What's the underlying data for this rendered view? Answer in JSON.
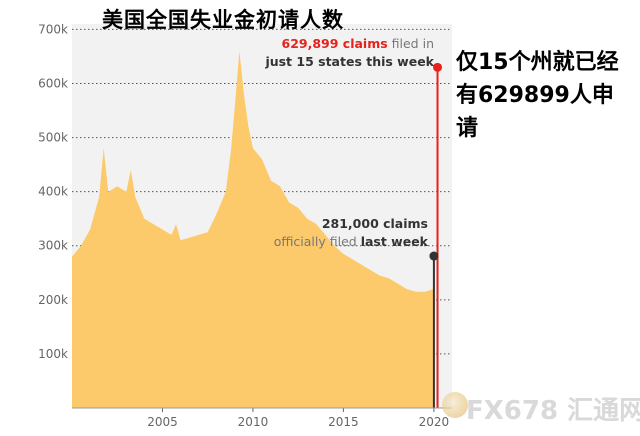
{
  "headline": "美国全国失业金初请人数",
  "side_note": "仅15个州就已经有629899人申请",
  "watermark": "FX678 汇通网",
  "colors": {
    "area": "#fcc96b",
    "bg": "#f2f2f2",
    "red": "#e8211b",
    "dark": "#333333",
    "grid": "#555555",
    "tick": "#666666"
  },
  "chart_data": {
    "type": "area",
    "xlim": [
      2000,
      2021
    ],
    "ylim": [
      0,
      710000
    ],
    "x_ticks": [
      2005,
      2010,
      2015,
      2020
    ],
    "y_ticks": [
      {
        "value": 100000,
        "label": "100k"
      },
      {
        "value": 200000,
        "label": "200k"
      },
      {
        "value": 300000,
        "label": "300k"
      },
      {
        "value": 400000,
        "label": "400k"
      },
      {
        "value": 500000,
        "label": "500k"
      },
      {
        "value": 600000,
        "label": "600k"
      },
      {
        "value": 700000,
        "label": "700k"
      }
    ],
    "series": [
      {
        "x": [
          2000,
          2000.5,
          2001,
          2001.5,
          2001.75,
          2002,
          2002.5,
          2003,
          2003.25,
          2003.5,
          2004,
          2004.5,
          2005,
          2005.5,
          2005.75,
          2006,
          2006.5,
          2007,
          2007.5,
          2008,
          2008.5,
          2008.8,
          2009,
          2009.25,
          2009.5,
          2009.75,
          2010,
          2010.5,
          2011,
          2011.5,
          2012,
          2012.5,
          2013,
          2013.5,
          2014,
          2014.5,
          2015,
          2015.5,
          2016,
          2016.5,
          2017,
          2017.5,
          2018,
          2018.5,
          2019,
          2019.5,
          2020.0
        ],
        "y": [
          280000,
          300000,
          330000,
          390000,
          480000,
          400000,
          410000,
          400000,
          440000,
          390000,
          350000,
          340000,
          330000,
          320000,
          340000,
          310000,
          315000,
          320000,
          325000,
          360000,
          400000,
          480000,
          560000,
          660000,
          580000,
          520000,
          480000,
          460000,
          420000,
          410000,
          380000,
          370000,
          350000,
          340000,
          320000,
          300000,
          285000,
          275000,
          265000,
          255000,
          245000,
          240000,
          230000,
          220000,
          215000,
          215000,
          220000
        ]
      }
    ],
    "markers": [
      {
        "x": 2020.2,
        "y": 629899,
        "color": "red",
        "label_parts": [
          "629,899 claims",
          " filed in",
          "just 15 states this week"
        ]
      },
      {
        "x": 2020.0,
        "y": 281000,
        "color": "dark",
        "label_parts": [
          "281,000 claims",
          "officially filed ",
          "last week"
        ]
      }
    ]
  }
}
